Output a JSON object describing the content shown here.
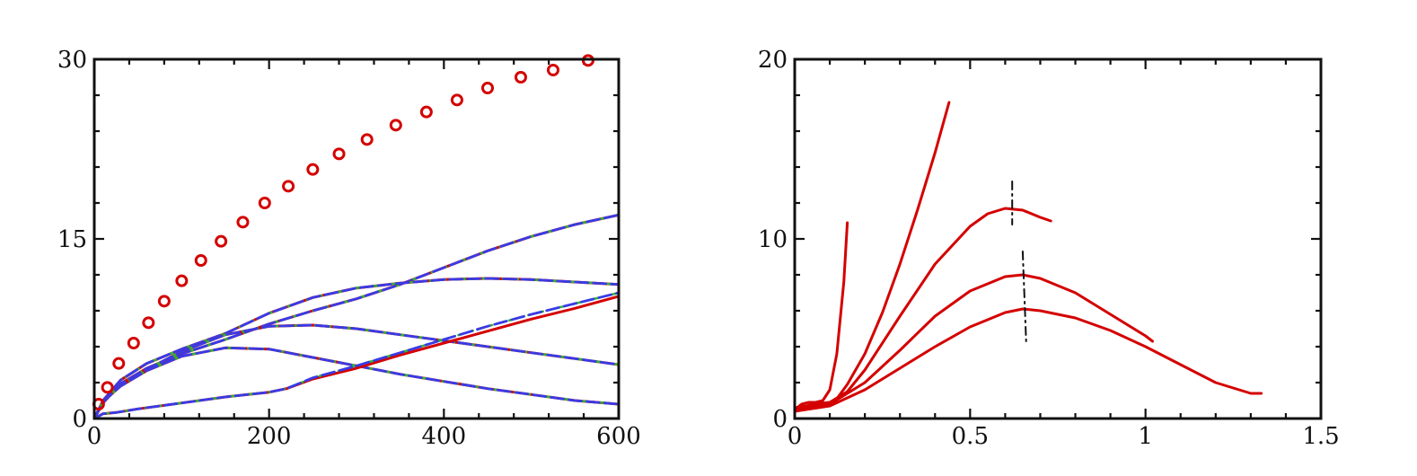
{
  "colors": {
    "red": "#d40000",
    "blue": "#3a3ae6",
    "green": "#2eb82e",
    "black": "#111111"
  },
  "chart_data": [
    {
      "type": "line",
      "xlim": [
        0,
        600
      ],
      "ylim": [
        0,
        30
      ],
      "x_ticks": [
        "0",
        "200",
        "400",
        "600"
      ],
      "y_ticks": [
        "0",
        "15",
        "30"
      ],
      "grid": false,
      "series": [
        {
          "style": "red-solid+green-dashdot+blue-dashed",
          "x": [
            0,
            10,
            30,
            60,
            100,
            150,
            200,
            250,
            300,
            350,
            400,
            450,
            500,
            550,
            600
          ],
          "y": [
            0,
            1.3,
            2.9,
            4.2,
            5.4,
            6.6,
            7.9,
            9.0,
            10.0,
            11.2,
            12.6,
            14.0,
            15.2,
            16.2,
            17.0
          ]
        },
        {
          "style": "red-solid+green-dashdot+blue-dashed",
          "x": [
            0,
            10,
            30,
            60,
            100,
            150,
            200,
            250,
            300,
            350,
            400,
            450,
            500,
            550,
            600
          ],
          "y": [
            0,
            1.5,
            3.2,
            4.6,
            5.8,
            7.1,
            8.8,
            10.1,
            10.9,
            11.3,
            11.6,
            11.7,
            11.6,
            11.4,
            11.2
          ]
        },
        {
          "style": "red-solid+green-dashdot+blue-dashed",
          "x": [
            0,
            10,
            30,
            60,
            100,
            150,
            200,
            250,
            300,
            350,
            400,
            450,
            500,
            550,
            600
          ],
          "y": [
            0,
            1.4,
            2.9,
            4.1,
            5.6,
            7.0,
            7.7,
            7.8,
            7.5,
            7.0,
            6.5,
            6.0,
            5.5,
            5.0,
            4.5
          ]
        },
        {
          "style": "red-solid+green-dashdot+blue-dashed",
          "x": [
            0,
            10,
            30,
            60,
            100,
            150,
            200,
            250,
            300,
            350,
            400,
            450,
            500,
            550,
            600
          ],
          "y": [
            0,
            1.4,
            2.7,
            4.0,
            5.2,
            5.9,
            5.8,
            5.1,
            4.4,
            3.7,
            3.1,
            2.5,
            2.0,
            1.5,
            1.2
          ]
        },
        {
          "style": "red-solid",
          "x": [
            0,
            10,
            25,
            50,
            100,
            150,
            200,
            220,
            250,
            300,
            350,
            400,
            450,
            500,
            550,
            600
          ],
          "y": [
            0,
            0.4,
            0.5,
            0.8,
            1.3,
            1.8,
            2.2,
            2.5,
            3.3,
            4.2,
            5.3,
            6.3,
            7.3,
            8.3,
            9.2,
            10.2
          ]
        },
        {
          "style": "blue-dashed+green-dashdot",
          "x": [
            0,
            10,
            25,
            50,
            100,
            150,
            200,
            220,
            250,
            300,
            350,
            400,
            450,
            500,
            550,
            600
          ],
          "y": [
            0,
            0.4,
            0.5,
            0.8,
            1.3,
            1.8,
            2.2,
            2.5,
            3.4,
            4.4,
            5.5,
            6.6,
            7.7,
            8.7,
            9.6,
            10.5
          ]
        },
        {
          "style": "red-circles",
          "x": [
            5,
            15,
            28,
            45,
            62,
            80,
            100,
            122,
            145,
            170,
            195,
            222,
            250,
            280,
            312,
            345,
            380,
            415,
            450,
            488,
            525,
            565
          ],
          "y": [
            1.2,
            2.6,
            4.6,
            6.3,
            8.0,
            9.8,
            11.5,
            13.2,
            14.8,
            16.4,
            18.0,
            19.4,
            20.8,
            22.1,
            23.3,
            24.5,
            25.6,
            26.6,
            27.6,
            28.5,
            29.1,
            29.9
          ]
        }
      ]
    },
    {
      "type": "line",
      "xlim": [
        0,
        1.5
      ],
      "ylim": [
        0,
        20
      ],
      "x_ticks": [
        "0",
        "0.5",
        "1",
        "1.5"
      ],
      "y_ticks": [
        "0",
        "10",
        "20"
      ],
      "grid": false,
      "series": [
        {
          "style": "red-solid",
          "x": [
            0,
            0.02,
            0.04,
            0.06,
            0.08,
            0.1,
            0.12,
            0.14,
            0.15
          ],
          "y": [
            0.5,
            0.8,
            0.9,
            0.9,
            1.0,
            1.6,
            3.6,
            7.6,
            10.9
          ]
        },
        {
          "style": "red-solid",
          "x": [
            0,
            0.05,
            0.1,
            0.12,
            0.15,
            0.2,
            0.25,
            0.3,
            0.35,
            0.4,
            0.44
          ],
          "y": [
            0.5,
            0.8,
            0.9,
            1.1,
            1.9,
            3.6,
            5.9,
            8.6,
            11.6,
            14.8,
            17.6
          ]
        },
        {
          "style": "red-solid",
          "x": [
            0,
            0.1,
            0.15,
            0.2,
            0.3,
            0.4,
            0.5,
            0.55,
            0.6,
            0.65,
            0.7,
            0.73
          ],
          "y": [
            0.6,
            0.9,
            1.5,
            2.7,
            5.7,
            8.6,
            10.7,
            11.4,
            11.7,
            11.6,
            11.2,
            11.0
          ]
        },
        {
          "style": "red-solid",
          "x": [
            0,
            0.1,
            0.2,
            0.3,
            0.4,
            0.5,
            0.6,
            0.65,
            0.7,
            0.8,
            0.9,
            1.0,
            1.02
          ],
          "y": [
            0.5,
            0.8,
            2.0,
            3.8,
            5.7,
            7.1,
            7.9,
            8.0,
            7.8,
            7.0,
            5.8,
            4.6,
            4.3
          ]
        },
        {
          "style": "red-solid",
          "x": [
            0,
            0.1,
            0.2,
            0.3,
            0.4,
            0.5,
            0.6,
            0.65,
            0.7,
            0.8,
            0.9,
            1.0,
            1.1,
            1.2,
            1.3,
            1.33
          ],
          "y": [
            0.4,
            0.7,
            1.6,
            2.8,
            4.0,
            5.1,
            5.9,
            6.1,
            6.0,
            5.6,
            4.9,
            4.0,
            3.0,
            2.0,
            1.4,
            1.4
          ]
        },
        {
          "style": "black-dashdot",
          "x": [
            0.62,
            0.62
          ],
          "y": [
            13.2,
            10.8
          ]
        },
        {
          "style": "black-dashdot",
          "x": [
            0.65,
            0.66
          ],
          "y": [
            9.3,
            4.2
          ]
        }
      ]
    }
  ]
}
